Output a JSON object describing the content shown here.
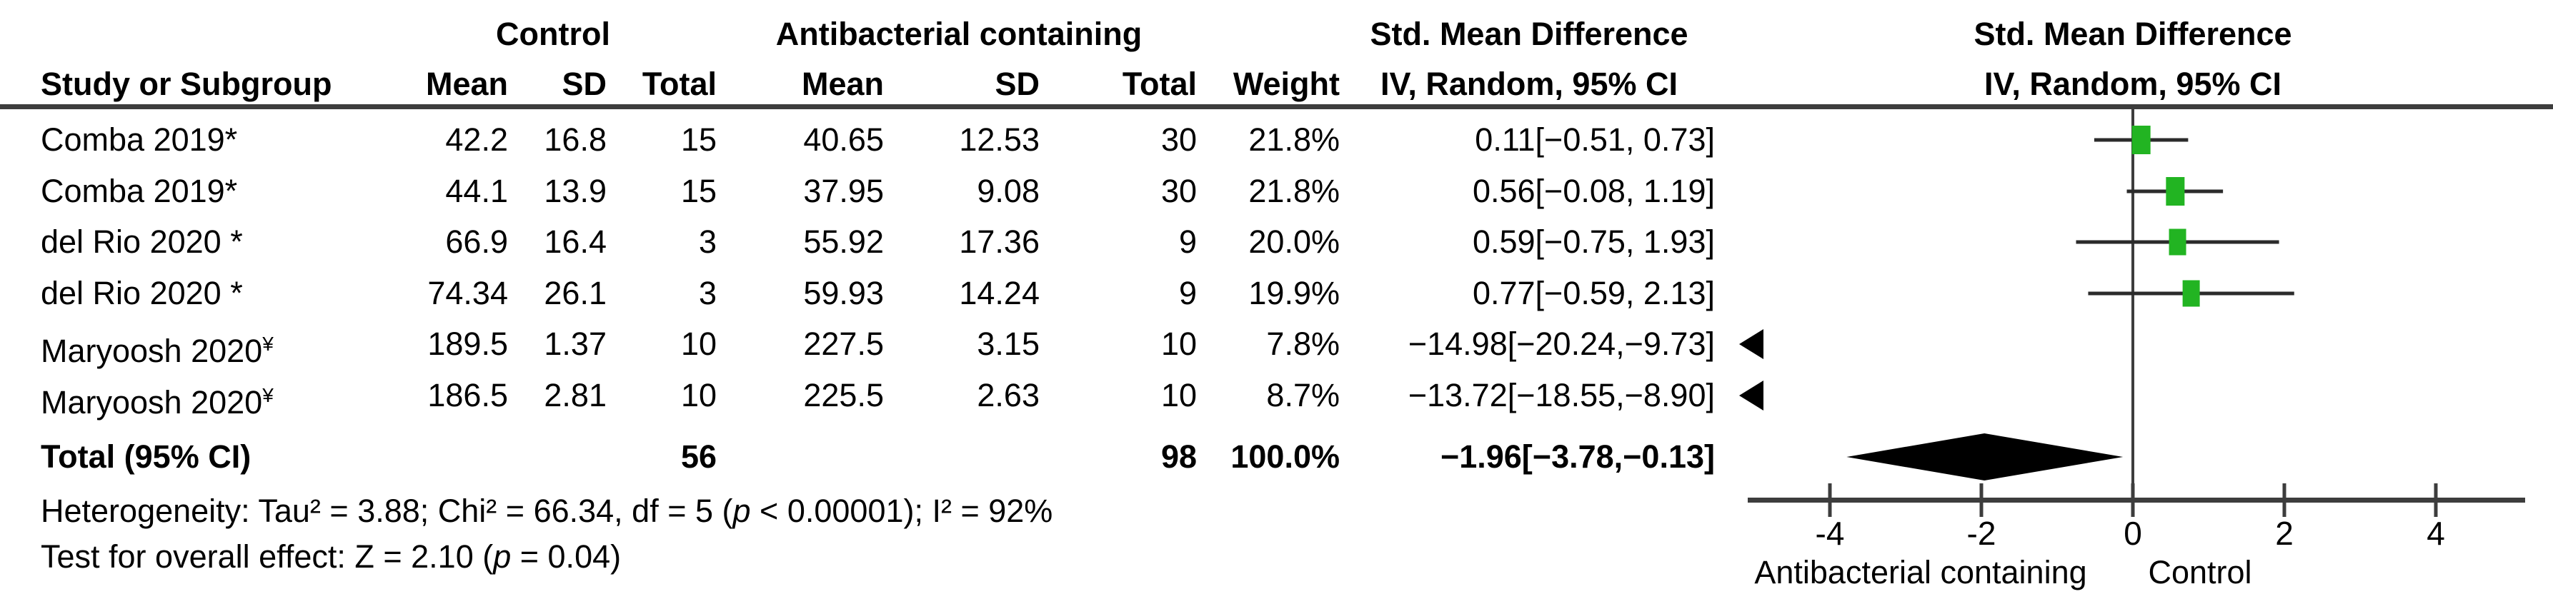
{
  "colors": {
    "marker_green": "#22b422",
    "line_dark": "#3d3d3d",
    "ci_line": "#2b2b2b",
    "diamond": "#000000"
  },
  "header": {
    "study": "Study or Subgroup",
    "group_control": "Control",
    "group_experimental": "Antibacterial containing",
    "mean": "Mean",
    "sd": "SD",
    "total": "Total",
    "weight": "Weight",
    "smd_title": "Std. Mean Difference",
    "method": "IV, Random, 95% CI"
  },
  "chart_data": {
    "type": "forest_plot",
    "effect_measure": "Std. Mean Difference",
    "method": "IV, Random, 95% CI",
    "x_axis": {
      "ticks": [
        -4,
        -2,
        0,
        2,
        4
      ],
      "range": [
        -5.1,
        5.15
      ],
      "label_left": "Antibacterial containing",
      "label_right": "Control"
    },
    "studies": [
      {
        "name": "Comba 2019",
        "mark": "*",
        "sup": false,
        "control_mean": "42.2",
        "control_sd": "16.8",
        "control_total": "15",
        "exp_mean": "40.65",
        "exp_sd": "12.53",
        "exp_total": "30",
        "weight": "21.8%",
        "weight_val": 21.8,
        "ci_text": "0.11[−0.51, 0.73]",
        "smd": 0.11,
        "ci_low": -0.51,
        "ci_high": 0.73,
        "offscale_left": false
      },
      {
        "name": "Comba 2019",
        "mark": "*",
        "sup": false,
        "control_mean": "44.1",
        "control_sd": "13.9",
        "control_total": "15",
        "exp_mean": "37.95",
        "exp_sd": "9.08",
        "exp_total": "30",
        "weight": "21.8%",
        "weight_val": 21.8,
        "ci_text": "0.56[−0.08, 1.19]",
        "smd": 0.56,
        "ci_low": -0.08,
        "ci_high": 1.19,
        "offscale_left": false
      },
      {
        "name": "del Rio 2020",
        "mark": " *",
        "sup": false,
        "control_mean": "66.9",
        "control_sd": "16.4",
        "control_total": "3",
        "exp_mean": "55.92",
        "exp_sd": "17.36",
        "exp_total": "9",
        "weight": "20.0%",
        "weight_val": 20.0,
        "ci_text": "0.59[−0.75, 1.93]",
        "smd": 0.59,
        "ci_low": -0.75,
        "ci_high": 1.93,
        "offscale_left": false
      },
      {
        "name": "del Rio 2020",
        "mark": " *",
        "sup": false,
        "control_mean": "74.34",
        "control_sd": "26.1",
        "control_total": "3",
        "exp_mean": "59.93",
        "exp_sd": "14.24",
        "exp_total": "9",
        "weight": "19.9%",
        "weight_val": 19.9,
        "ci_text": "0.77[−0.59, 2.13]",
        "smd": 0.77,
        "ci_low": -0.59,
        "ci_high": 2.13,
        "offscale_left": false
      },
      {
        "name": "Maryoosh 2020",
        "mark": "¥",
        "sup": true,
        "control_mean": "189.5",
        "control_sd": "1.37",
        "control_total": "10",
        "exp_mean": "227.5",
        "exp_sd": "3.15",
        "exp_total": "10",
        "weight": "7.8%",
        "weight_val": 7.8,
        "ci_text": "−14.98[−20.24,−9.73]",
        "smd": -14.98,
        "ci_low": -20.24,
        "ci_high": -9.73,
        "offscale_left": true
      },
      {
        "name": "Maryoosh 2020",
        "mark": "¥",
        "sup": true,
        "control_mean": "186.5",
        "control_sd": "2.81",
        "control_total": "10",
        "exp_mean": "225.5",
        "exp_sd": "2.63",
        "exp_total": "10",
        "weight": "8.7%",
        "weight_val": 8.7,
        "ci_text": "−13.72[−18.55,−8.90]",
        "smd": -13.72,
        "ci_low": -18.55,
        "ci_high": -8.9,
        "offscale_left": true
      }
    ],
    "total": {
      "label": "Total (95% CI)",
      "control_total": "56",
      "exp_total": "98",
      "weight": "100.0%",
      "ci_text": "−1.96[−3.78,−0.13]",
      "smd": -1.96,
      "ci_low": -3.78,
      "ci_high": -0.13
    },
    "heterogeneity": {
      "pre": "Heterogeneity: Tau² = 3.88; Chi² = 66.34, df = 5 (",
      "p": "p",
      "post": " < 0.00001); I² = 92%"
    },
    "overall_effect": {
      "pre": "Test for overall effect: Z = 2.10 (",
      "p": "p",
      "post": " = 0.04)"
    }
  }
}
